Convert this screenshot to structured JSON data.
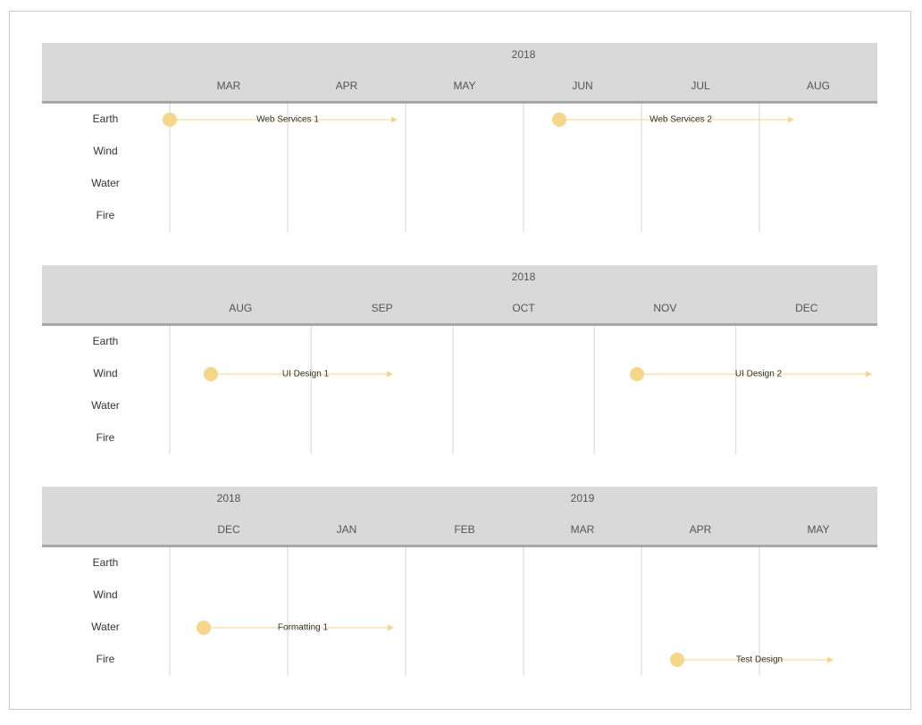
{
  "panels": [
    {
      "years": [
        "2018"
      ],
      "months": [
        "MAR",
        "APR",
        "MAY",
        "JUN",
        "JUL",
        "AUG"
      ],
      "rows": [
        "Earth",
        "Wind",
        "Water",
        "Fire"
      ],
      "events": [
        "Web Services 1",
        "Web Services 2"
      ]
    },
    {
      "years": [
        "2018"
      ],
      "months": [
        "AUG",
        "SEP",
        "OCT",
        "NOV",
        "DEC"
      ],
      "rows": [
        "Earth",
        "Wind",
        "Water",
        "Fire"
      ],
      "events": [
        "UI Design 1",
        "UI Design 2"
      ]
    },
    {
      "years": [
        "2018",
        "2019"
      ],
      "months": [
        "DEC",
        "JAN",
        "FEB",
        "MAR",
        "APR",
        "MAY"
      ],
      "rows": [
        "Earth",
        "Wind",
        "Water",
        "Fire"
      ],
      "events": [
        "Formatting 1",
        "Test Design"
      ]
    }
  ]
}
